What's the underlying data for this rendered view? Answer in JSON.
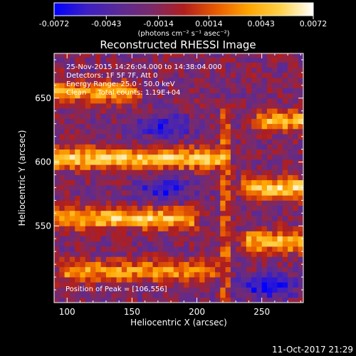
{
  "window": {
    "footer_timestamp": "11-Oct-2017 21:29"
  },
  "colorbar": {
    "ticks": [
      "-0.0072",
      "-0.0043",
      "-0.0014",
      "0.0014",
      "0.0043",
      "0.0072"
    ],
    "tick_values": [
      -0.0072,
      -0.0043,
      -0.0014,
      0.0014,
      0.0043,
      0.0072
    ],
    "range": [
      -0.0072,
      0.0072
    ],
    "units_label": "(photons cm⁻² s⁻¹ asec⁻²)"
  },
  "chart_data": {
    "type": "heatmap",
    "title": "Reconstructed RHESSI Image",
    "xlabel": "Heliocentric X (arcsec)",
    "ylabel": "Heliocentric Y (arcsec)",
    "xlim": [
      90,
      282
    ],
    "ylim": [
      490,
      685
    ],
    "x_ticks": [
      "100",
      "150",
      "200",
      "250"
    ],
    "x_tick_values": [
      100,
      150,
      200,
      250
    ],
    "y_ticks": [
      "550",
      "600",
      "650"
    ],
    "y_tick_values": [
      550,
      600,
      650
    ],
    "colormap": [
      "#0000ff",
      "#3c1fc4",
      "#5a2a96",
      "#7a2a6a",
      "#b01e1e",
      "#e85a00",
      "#ffa500",
      "#ffd24a",
      "#ffffff"
    ],
    "info_lines": [
      "25-Nov-2015 14:26:04.000 to 14:38:04.000",
      "Detectors: 1F 5F 7F, Att 0",
      "Energy Range: 25.0 - 50.0 keV",
      "Clean     Total counts: 1.19E+04"
    ],
    "peak_label": "Position of Peak = [106,556]",
    "peak_position": [
      106,
      556
    ],
    "bands": [
      {
        "y_center": 655,
        "x_from": 92,
        "x_to": 150,
        "amplitude": 0.0055
      },
      {
        "y_center": 603,
        "x_from": 92,
        "x_to": 215,
        "amplitude": 0.0066
      },
      {
        "y_center": 556,
        "x_from": 95,
        "x_to": 195,
        "amplitude": 0.0065
      },
      {
        "y_center": 515,
        "x_from": 100,
        "x_to": 210,
        "amplitude": 0.005
      },
      {
        "y_center": 580,
        "x_from": 240,
        "x_to": 282,
        "amplitude": 0.0068
      },
      {
        "y_center": 538,
        "x_from": 240,
        "x_to": 282,
        "amplitude": 0.0064
      },
      {
        "y_center": 632,
        "x_from": 250,
        "x_to": 282,
        "amplitude": 0.0058
      }
    ],
    "vertical_band": {
      "x_center": 222,
      "y_from": 490,
      "y_to": 640,
      "amplitude": 0.004
    },
    "dark_patches": [
      {
        "x": 175,
        "y": 628,
        "amplitude": -0.0045
      },
      {
        "x": 175,
        "y": 578,
        "amplitude": -0.0042
      },
      {
        "x": 255,
        "y": 503,
        "amplitude": -0.0055
      }
    ]
  }
}
